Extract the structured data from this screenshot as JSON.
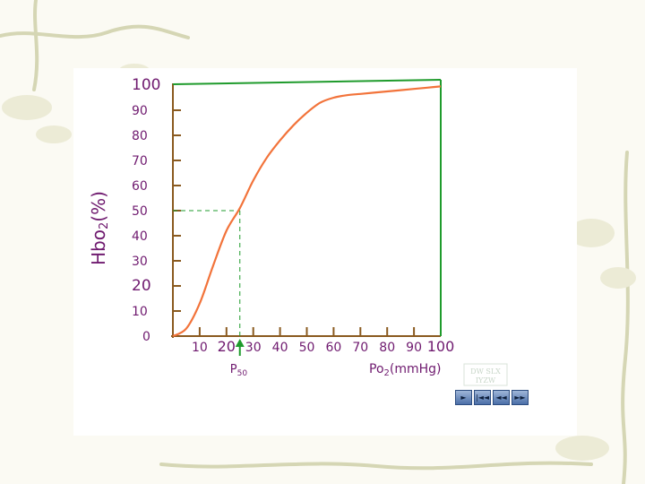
{
  "chart_data": {
    "type": "line",
    "ylabel_main": "Hbo",
    "ylabel_sub": "2",
    "ylabel_tail": "(%)",
    "xlabel_main": "Po",
    "xlabel_sub": "2",
    "xlabel_tail": "(mmHg)",
    "p50_main": "P",
    "p50_sub": "50",
    "xlim": [
      0,
      100
    ],
    "ylim": [
      0,
      100
    ],
    "y_ticks": [
      "0",
      "10",
      "20",
      "30",
      "40",
      "50",
      "60",
      "70",
      "80",
      "90",
      "100"
    ],
    "x_ticks": [
      "10",
      "20",
      "30",
      "40",
      "50",
      "60",
      "70",
      "80",
      "90",
      "100"
    ],
    "x": [
      0,
      5,
      10,
      15,
      20,
      25,
      30,
      35,
      40,
      45,
      50,
      55,
      60,
      65,
      70,
      75,
      80,
      85,
      90,
      95,
      100
    ],
    "y": [
      0,
      3,
      13,
      28,
      42,
      51,
      62,
      71,
      78,
      84,
      89,
      93,
      95,
      96,
      96.5,
      97,
      97.5,
      98,
      98.5,
      99,
      99.5
    ],
    "p50": {
      "x": 25,
      "y": 50
    },
    "grid": false,
    "colors": {
      "curve": "#f2733a",
      "axis": "#8a5a1f",
      "box": "#1f9b2c",
      "guide": "#1f9b2c",
      "labels": "#6f1a6f",
      "faint_tick": "#c7b39a"
    }
  },
  "logo_text": [
    "DW SLX",
    "IYZW"
  ],
  "nav": [
    {
      "icon": "play-icon",
      "glyph": "►"
    },
    {
      "icon": "first-slide-icon",
      "glyph": "|◄◄"
    },
    {
      "icon": "previous-slide-icon",
      "glyph": "◄◄"
    },
    {
      "icon": "next-slide-icon",
      "glyph": "►►"
    }
  ]
}
